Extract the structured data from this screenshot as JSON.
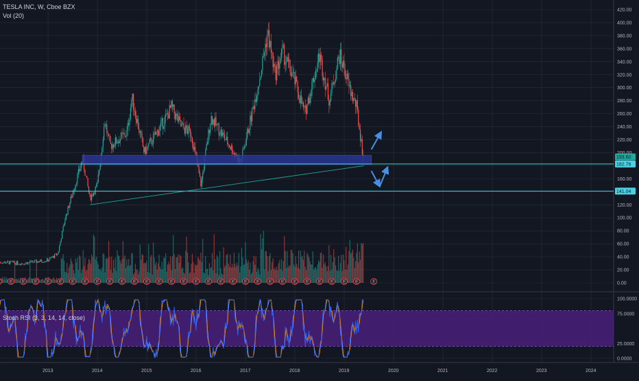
{
  "header": {
    "symbol": "TESLA INC, W, Cboe BZX",
    "volume": "Vol (20)",
    "oscillator": "Stoch RSI (3, 3, 14, 14, close)"
  },
  "colors": {
    "background": "#131722",
    "grid": "#2a2e39",
    "up": "#26a69a",
    "down": "#ef5350",
    "zone": "#283593",
    "zone_border": "#3949ab",
    "levels": "#4dd0e1",
    "arrows": "#4a90e2",
    "stoch_band": "#4a1f7a",
    "k_line": "#2962ff",
    "d_line": "#ff9800"
  },
  "chart_data": [
    {
      "type": "candlestick",
      "interval": "weekly",
      "price_axis": {
        "ticks": [
          "420.00",
          "400.00",
          "380.00",
          "360.00",
          "340.00",
          "320.00",
          "300.00",
          "280.00",
          "260.00",
          "240.00",
          "220.00",
          "200.00",
          "180.00",
          "160.00",
          "140.00",
          "120.00",
          "100.00",
          "80.00",
          "60.00",
          "40.00",
          "20.00",
          "0.00"
        ],
        "range": [
          0,
          420
        ]
      },
      "time_axis": {
        "ticks": [
          "2013",
          "2014",
          "2015",
          "2016",
          "2017",
          "2018",
          "2019",
          "2020",
          "2021",
          "2022",
          "2023",
          "2024"
        ]
      },
      "price_path": [
        {
          "t": 2012.0,
          "p": 32
        },
        {
          "t": 2012.5,
          "p": 30
        },
        {
          "t": 2013.0,
          "p": 35
        },
        {
          "t": 2013.2,
          "p": 45
        },
        {
          "t": 2013.35,
          "p": 100
        },
        {
          "t": 2013.7,
          "p": 190
        },
        {
          "t": 2013.85,
          "p": 130
        },
        {
          "t": 2014.0,
          "p": 150
        },
        {
          "t": 2014.15,
          "p": 250
        },
        {
          "t": 2014.25,
          "p": 210
        },
        {
          "t": 2014.6,
          "p": 230
        },
        {
          "t": 2014.7,
          "p": 285
        },
        {
          "t": 2014.95,
          "p": 200
        },
        {
          "t": 2015.4,
          "p": 255
        },
        {
          "t": 2015.5,
          "p": 270
        },
        {
          "t": 2015.7,
          "p": 240
        },
        {
          "t": 2015.9,
          "p": 230
        },
        {
          "t": 2016.1,
          "p": 150
        },
        {
          "t": 2016.3,
          "p": 255
        },
        {
          "t": 2016.6,
          "p": 220
        },
        {
          "t": 2016.9,
          "p": 185
        },
        {
          "t": 2017.1,
          "p": 250
        },
        {
          "t": 2017.3,
          "p": 320
        },
        {
          "t": 2017.45,
          "p": 385
        },
        {
          "t": 2017.6,
          "p": 320
        },
        {
          "t": 2017.75,
          "p": 355
        },
        {
          "t": 2018.0,
          "p": 310
        },
        {
          "t": 2018.2,
          "p": 260
        },
        {
          "t": 2018.5,
          "p": 350
        },
        {
          "t": 2018.7,
          "p": 280
        },
        {
          "t": 2018.9,
          "p": 350
        },
        {
          "t": 2019.0,
          "p": 330
        },
        {
          "t": 2019.1,
          "p": 300
        },
        {
          "t": 2019.25,
          "p": 270
        },
        {
          "t": 2019.4,
          "p": 185
        }
      ],
      "volume_axis": {
        "ticks": [
          "80.00",
          "60.00",
          "40.00",
          "20.00",
          "0.00"
        ]
      },
      "price_tags": [
        {
          "label": "193.60",
          "color": "#26a69a",
          "value": 193.6
        },
        {
          "label": "182.76",
          "color": "#4dd0e1",
          "value": 182.76
        },
        {
          "label": "141.04",
          "color": "#4dd0e1",
          "value": 141.04
        }
      ],
      "support_zone": {
        "from": 182,
        "to": 196,
        "t_start": 2013.7,
        "t_end": 2019.55
      },
      "trendline": [
        {
          "t": 2013.85,
          "p": 120
        },
        {
          "t": 2019.4,
          "p": 180
        }
      ],
      "annotations": [
        {
          "type": "arrow",
          "from": {
            "t": 2019.55,
            "p": 205
          },
          "to": {
            "t": 2019.75,
            "p": 232
          }
        },
        {
          "type": "arrow",
          "from": {
            "t": 2019.55,
            "p": 172
          },
          "to": {
            "t": 2019.72,
            "p": 148
          }
        },
        {
          "type": "arrow",
          "from": {
            "t": 2019.72,
            "p": 148
          },
          "to": {
            "t": 2019.88,
            "p": 178
          }
        }
      ],
      "earnings_marker": "E"
    },
    {
      "type": "line",
      "title": "Stoch RSI (3, 3, 14, 14, close)",
      "axis_ticks": [
        "100.0000",
        "75.0000",
        "25.0000",
        "0.0000"
      ],
      "range": [
        0,
        100
      ],
      "band": [
        20,
        80
      ],
      "series": [
        {
          "name": "K",
          "color": "#2962ff"
        },
        {
          "name": "D",
          "color": "#ff9800"
        }
      ]
    }
  ]
}
